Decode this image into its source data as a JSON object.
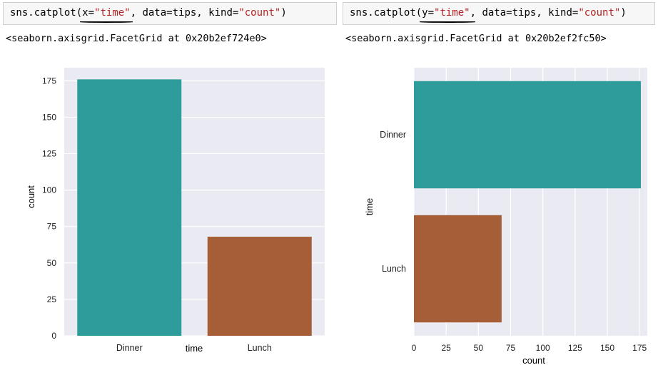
{
  "cells": [
    {
      "code_prefix": "sns.catplot(",
      "code_arg": "x=",
      "code_str": "\"time\"",
      "code_mid": ", data=tips, kind=",
      "code_str2": "\"count\"",
      "code_suffix": ")",
      "output": "<seaborn.axisgrid.FacetGrid at 0x20b2ef724e0>"
    },
    {
      "code_prefix": "sns.catplot(",
      "code_arg": "y=",
      "code_str": "\"time\"",
      "code_mid": ", data=tips, kind=",
      "code_str2": "\"count\"",
      "code_suffix": ")",
      "output": "<seaborn.axisgrid.FacetGrid at 0x20b2ef2fc50>"
    }
  ],
  "chart_data": [
    {
      "type": "bar",
      "orientation": "vertical",
      "categories": [
        "Dinner",
        "Lunch"
      ],
      "values": [
        176,
        68
      ],
      "colors": [
        "#2e9c9a",
        "#a65e37"
      ],
      "xlabel": "time",
      "ylabel": "count",
      "ylim": [
        0,
        184
      ],
      "yticks": [
        0,
        25,
        50,
        75,
        100,
        125,
        150,
        175
      ],
      "grid": true,
      "background": "#eaeaf2"
    },
    {
      "type": "bar",
      "orientation": "horizontal",
      "categories": [
        "Dinner",
        "Lunch"
      ],
      "values": [
        176,
        68
      ],
      "colors": [
        "#2e9c9a",
        "#a65e37"
      ],
      "xlabel": "count",
      "ylabel": "time",
      "xlim": [
        0,
        181
      ],
      "xticks": [
        0,
        25,
        50,
        75,
        100,
        125,
        150,
        175
      ],
      "grid": true,
      "background": "#eaeaf2"
    }
  ]
}
